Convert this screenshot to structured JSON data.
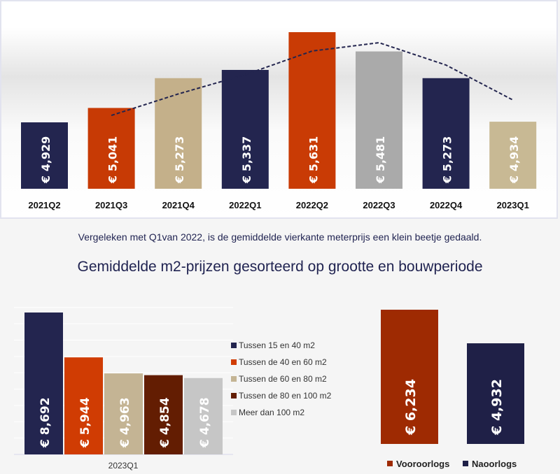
{
  "note": "Vergeleken met Q1van 2022, is de gemiddelde vierkante meterprijs een klein beetje gedaald.",
  "title": "Gemiddelde m2-prijzen gesorteerd op grootte en bouwperiode",
  "chart_data": [
    {
      "type": "bar",
      "title": "",
      "categories": [
        "2021Q2",
        "2021Q3",
        "2021Q4",
        "2022Q1",
        "2022Q2",
        "2022Q3",
        "2022Q4",
        "2023Q1"
      ],
      "values": [
        4929,
        5041,
        5273,
        5337,
        5631,
        5481,
        5273,
        4934
      ],
      "labels": [
        "€ 4,929",
        "€ 5,041",
        "€ 5,273",
        "€ 5,337",
        "€ 5,631",
        "€ 5,481",
        "€ 5,273",
        "€ 4,934"
      ],
      "colors": [
        "#23254f",
        "#c73a05",
        "#c4b08a",
        "#23254f",
        "#c93b05",
        "#aaaaaa",
        "#23254f",
        "#c8b994"
      ],
      "trendline": [
        null,
        4983,
        5150,
        5300,
        5484,
        5549,
        5375,
        5103
      ],
      "trend_color": "#23254f",
      "ylim": [
        4412,
        5800
      ],
      "grid": false
    },
    {
      "type": "bar",
      "categories": [
        "2023Q1"
      ],
      "series": [
        {
          "name": "Tussen 15 en 40 m2",
          "values": [
            8692
          ],
          "label": "€ 8,692",
          "color": "#23254f"
        },
        {
          "name": "Tussen de 40 en 60 m2",
          "values": [
            5944
          ],
          "label": "€ 5,944",
          "color": "#d03c03"
        },
        {
          "name": "Tussen de 60 en 80 m2",
          "values": [
            4963
          ],
          "label": "€ 4,963",
          "color": "#c4b494"
        },
        {
          "name": "Tussen de 80 en 100 m2",
          "values": [
            4854
          ],
          "label": "€ 4,854",
          "color": "#631d02"
        },
        {
          "name": "Meer dan 100 m2",
          "values": [
            4678
          ],
          "label": "€ 4,678",
          "color": "#c6c6c6"
        }
      ],
      "ylim": [
        0,
        9000
      ],
      "grid": true,
      "legend": "right"
    },
    {
      "type": "bar",
      "categories": [
        ""
      ],
      "series": [
        {
          "name": "Vooroorlogs",
          "values": [
            6234
          ],
          "label": "€ 6,234",
          "color": "#9e2a02"
        },
        {
          "name": "Naoorlogs",
          "values": [
            4932
          ],
          "label": "€ 4,932",
          "color": "#1f2047"
        }
      ],
      "ylim": [
        1031,
        6300
      ],
      "grid": false,
      "legend": "bottom"
    }
  ]
}
